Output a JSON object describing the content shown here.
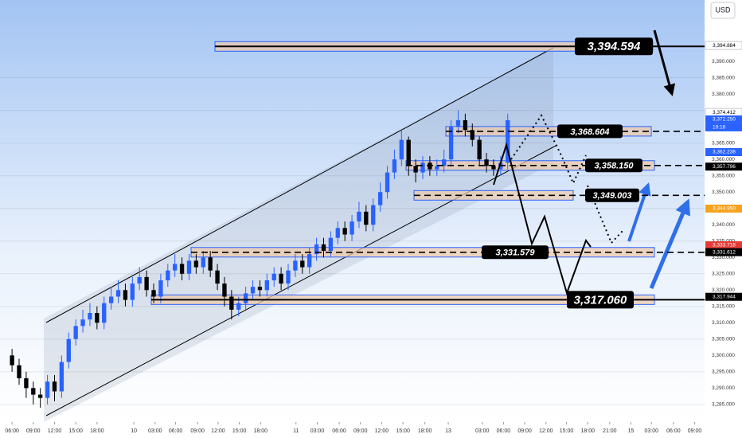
{
  "chart_data": {
    "type": "candlestick",
    "currency": "USD",
    "countdown": "19:18",
    "ylim": [
      3279.6,
      3408.8
    ],
    "xlim": [
      -1.7,
      97.8
    ],
    "yticks": [
      {
        "value": 3285,
        "label": "3,285.000"
      },
      {
        "value": 3290,
        "label": "3,290.000"
      },
      {
        "value": 3295,
        "label": "3,295.000"
      },
      {
        "value": 3300,
        "label": "3,300.000"
      },
      {
        "value": 3305,
        "label": "3,305.000"
      },
      {
        "value": 3310,
        "label": "3,310.000"
      },
      {
        "value": 3315,
        "label": "3,315.000"
      },
      {
        "value": 3320,
        "label": "3,320.000"
      },
      {
        "value": 3325,
        "label": "3,325.000"
      },
      {
        "value": 3330,
        "label": "3,330.000"
      },
      {
        "value": 3335,
        "label": "3,335.000"
      },
      {
        "value": 3340,
        "label": "3,340.000"
      },
      {
        "value": 3345,
        "label": "3,345.000"
      },
      {
        "value": 3350,
        "label": "3,350.000"
      },
      {
        "value": 3355,
        "label": "3,355.000"
      },
      {
        "value": 3360,
        "label": "3,360.000"
      },
      {
        "value": 3365,
        "label": "3,365.000"
      },
      {
        "value": 3370,
        "label": "3,370.000"
      },
      {
        "value": 3375,
        "label": "3,375.000"
      },
      {
        "value": 3380,
        "label": "3,380.000"
      },
      {
        "value": 3385,
        "label": "3,385.000"
      },
      {
        "value": 3390,
        "label": "3,390.000"
      }
    ],
    "xticks": [
      {
        "value": 0,
        "label": "06:00"
      },
      {
        "value": 3,
        "label": "09:00"
      },
      {
        "value": 6,
        "label": "12:00"
      },
      {
        "value": 9,
        "label": "15:00"
      },
      {
        "value": 12,
        "label": "18:00"
      },
      {
        "value": 17.2,
        "label": "10"
      },
      {
        "value": 20.2,
        "label": "03:00"
      },
      {
        "value": 23.1,
        "label": "06:00"
      },
      {
        "value": 26.2,
        "label": "09:00"
      },
      {
        "value": 29.1,
        "label": "12:00"
      },
      {
        "value": 32.1,
        "label": "15:00"
      },
      {
        "value": 35.1,
        "label": "18:00"
      },
      {
        "value": 40.1,
        "label": "11"
      },
      {
        "value": 43.1,
        "label": "03:00"
      },
      {
        "value": 46.2,
        "label": "06:00"
      },
      {
        "value": 49.2,
        "label": "09:00"
      },
      {
        "value": 52.2,
        "label": "12:00"
      },
      {
        "value": 55.2,
        "label": "15:00"
      },
      {
        "value": 58.3,
        "label": "18:00"
      },
      {
        "value": 61.6,
        "label": "13"
      },
      {
        "value": 66.4,
        "label": "03:00"
      },
      {
        "value": 69.4,
        "label": "06:00"
      },
      {
        "value": 72.4,
        "label": "09:00"
      },
      {
        "value": 75.4,
        "label": "12:00"
      },
      {
        "value": 78.3,
        "label": "15:00"
      },
      {
        "value": 81.3,
        "label": "18:00"
      },
      {
        "value": 84.4,
        "label": "21:00"
      },
      {
        "value": 87.4,
        "label": "15"
      },
      {
        "value": 90.3,
        "label": "03:00"
      },
      {
        "value": 93.4,
        "label": "06:00"
      },
      {
        "value": 96.4,
        "label": "09:00"
      }
    ],
    "up_color": "#2962ff",
    "down_color": "#000000",
    "open": [
      3300,
      3297,
      3293,
      3290,
      3288,
      3287,
      3292,
      3289,
      3298,
      3305,
      3309,
      3311,
      3313,
      3310,
      3316,
      3318,
      3320,
      3317,
      3322,
      3324,
      3320,
      3318,
      3323,
      3326,
      3328,
      3325,
      3329,
      3327,
      3330,
      3326,
      3322,
      3318,
      3314,
      3316,
      3319,
      3321,
      3320,
      3323,
      3325,
      3322,
      3326,
      3329,
      3327,
      3331,
      3334,
      3332,
      3336,
      3339,
      3337,
      3341,
      3344,
      3340,
      3346,
      3350,
      3356,
      3360,
      3366,
      3358,
      3356,
      3359,
      3357,
      3358,
      3360,
      3370,
      3372,
      3369,
      3366,
      3360,
      3358,
      3357,
      3359
    ],
    "high": [
      3302,
      3299,
      3295,
      3292,
      3290,
      3294,
      3294,
      3300,
      3307,
      3311,
      3314,
      3316,
      3315,
      3318,
      3321,
      3323,
      3322,
      3324,
      3327,
      3326,
      3322,
      3325,
      3328,
      3331,
      3330,
      3331,
      3331,
      3332,
      3332,
      3328,
      3324,
      3320,
      3318,
      3321,
      3323,
      3323,
      3325,
      3327,
      3327,
      3328,
      3331,
      3331,
      3333,
      3336,
      3336,
      3338,
      3341,
      3341,
      3343,
      3347,
      3346,
      3348,
      3353,
      3358,
      3363,
      3369,
      3367,
      3360,
      3361,
      3361,
      3360,
      3363,
      3372,
      3375,
      3374,
      3371,
      3367,
      3362,
      3360,
      3361,
      3374
    ],
    "low": [
      3295,
      3291,
      3287,
      3285,
      3284,
      3285,
      3286,
      3287,
      3296,
      3303,
      3307,
      3309,
      3308,
      3308,
      3314,
      3316,
      3315,
      3315,
      3320,
      3318,
      3316,
      3316,
      3321,
      3324,
      3323,
      3323,
      3325,
      3325,
      3324,
      3320,
      3315,
      3311,
      3312,
      3314,
      3317,
      3318,
      3318,
      3321,
      3320,
      3320,
      3324,
      3325,
      3325,
      3329,
      3330,
      3330,
      3334,
      3335,
      3335,
      3339,
      3338,
      3338,
      3344,
      3348,
      3354,
      3358,
      3355,
      3353,
      3354,
      3355,
      3355,
      3356,
      3358,
      3368,
      3367,
      3364,
      3358,
      3356,
      3355,
      3355,
      3357
    ],
    "close": [
      3297,
      3293,
      3290,
      3288,
      3287,
      3292,
      3289,
      3298,
      3305,
      3309,
      3311,
      3313,
      3310,
      3316,
      3318,
      3320,
      3317,
      3322,
      3324,
      3320,
      3318,
      3323,
      3326,
      3328,
      3325,
      3329,
      3327,
      3330,
      3326,
      3322,
      3318,
      3314,
      3316,
      3319,
      3321,
      3320,
      3323,
      3325,
      3322,
      3326,
      3329,
      3327,
      3331,
      3334,
      3332,
      3336,
      3339,
      3337,
      3341,
      3344,
      3340,
      3346,
      3350,
      3356,
      3360,
      3366,
      3358,
      3356,
      3359,
      3357,
      3358,
      3360,
      3370,
      3372,
      3369,
      3366,
      3360,
      3358,
      3357,
      3359,
      3372
    ],
    "levels": [
      {
        "value": 3394.594,
        "label": "3,394.594"
      },
      {
        "value": 3368.604,
        "label": "3,368.604"
      },
      {
        "value": 3358.15,
        "label": "3,358.150"
      },
      {
        "value": 3349.003,
        "label": "3,349.003"
      },
      {
        "value": 3331.579,
        "label": "3,331.579"
      },
      {
        "value": 3317.06,
        "label": "3,317.060"
      }
    ],
    "price_tags": [
      {
        "value": 3394.884,
        "label": "3,394.884",
        "color": "#ffffff"
      },
      {
        "value": 3374.412,
        "label": "3,374.412",
        "color": "#ffffff"
      },
      {
        "value": 3372.25,
        "label": "3,372.250",
        "color": "#2962ff"
      },
      {
        "value": 3362.238,
        "label": "3,362.238",
        "color": "#2962ff"
      },
      {
        "value": 3357.796,
        "label": "3,357.796",
        "color": "#000000"
      },
      {
        "value": 3344.95,
        "label": "3,344.950",
        "color": "#f7a21b"
      },
      {
        "value": 3333.718,
        "label": "3,333.718",
        "color": "#e53935"
      },
      {
        "value": 3331.612,
        "label": "3,331.612",
        "color": "#000000"
      },
      {
        "value": 3317.944,
        "label": "3,317.944",
        "color": "#000000"
      }
    ]
  }
}
